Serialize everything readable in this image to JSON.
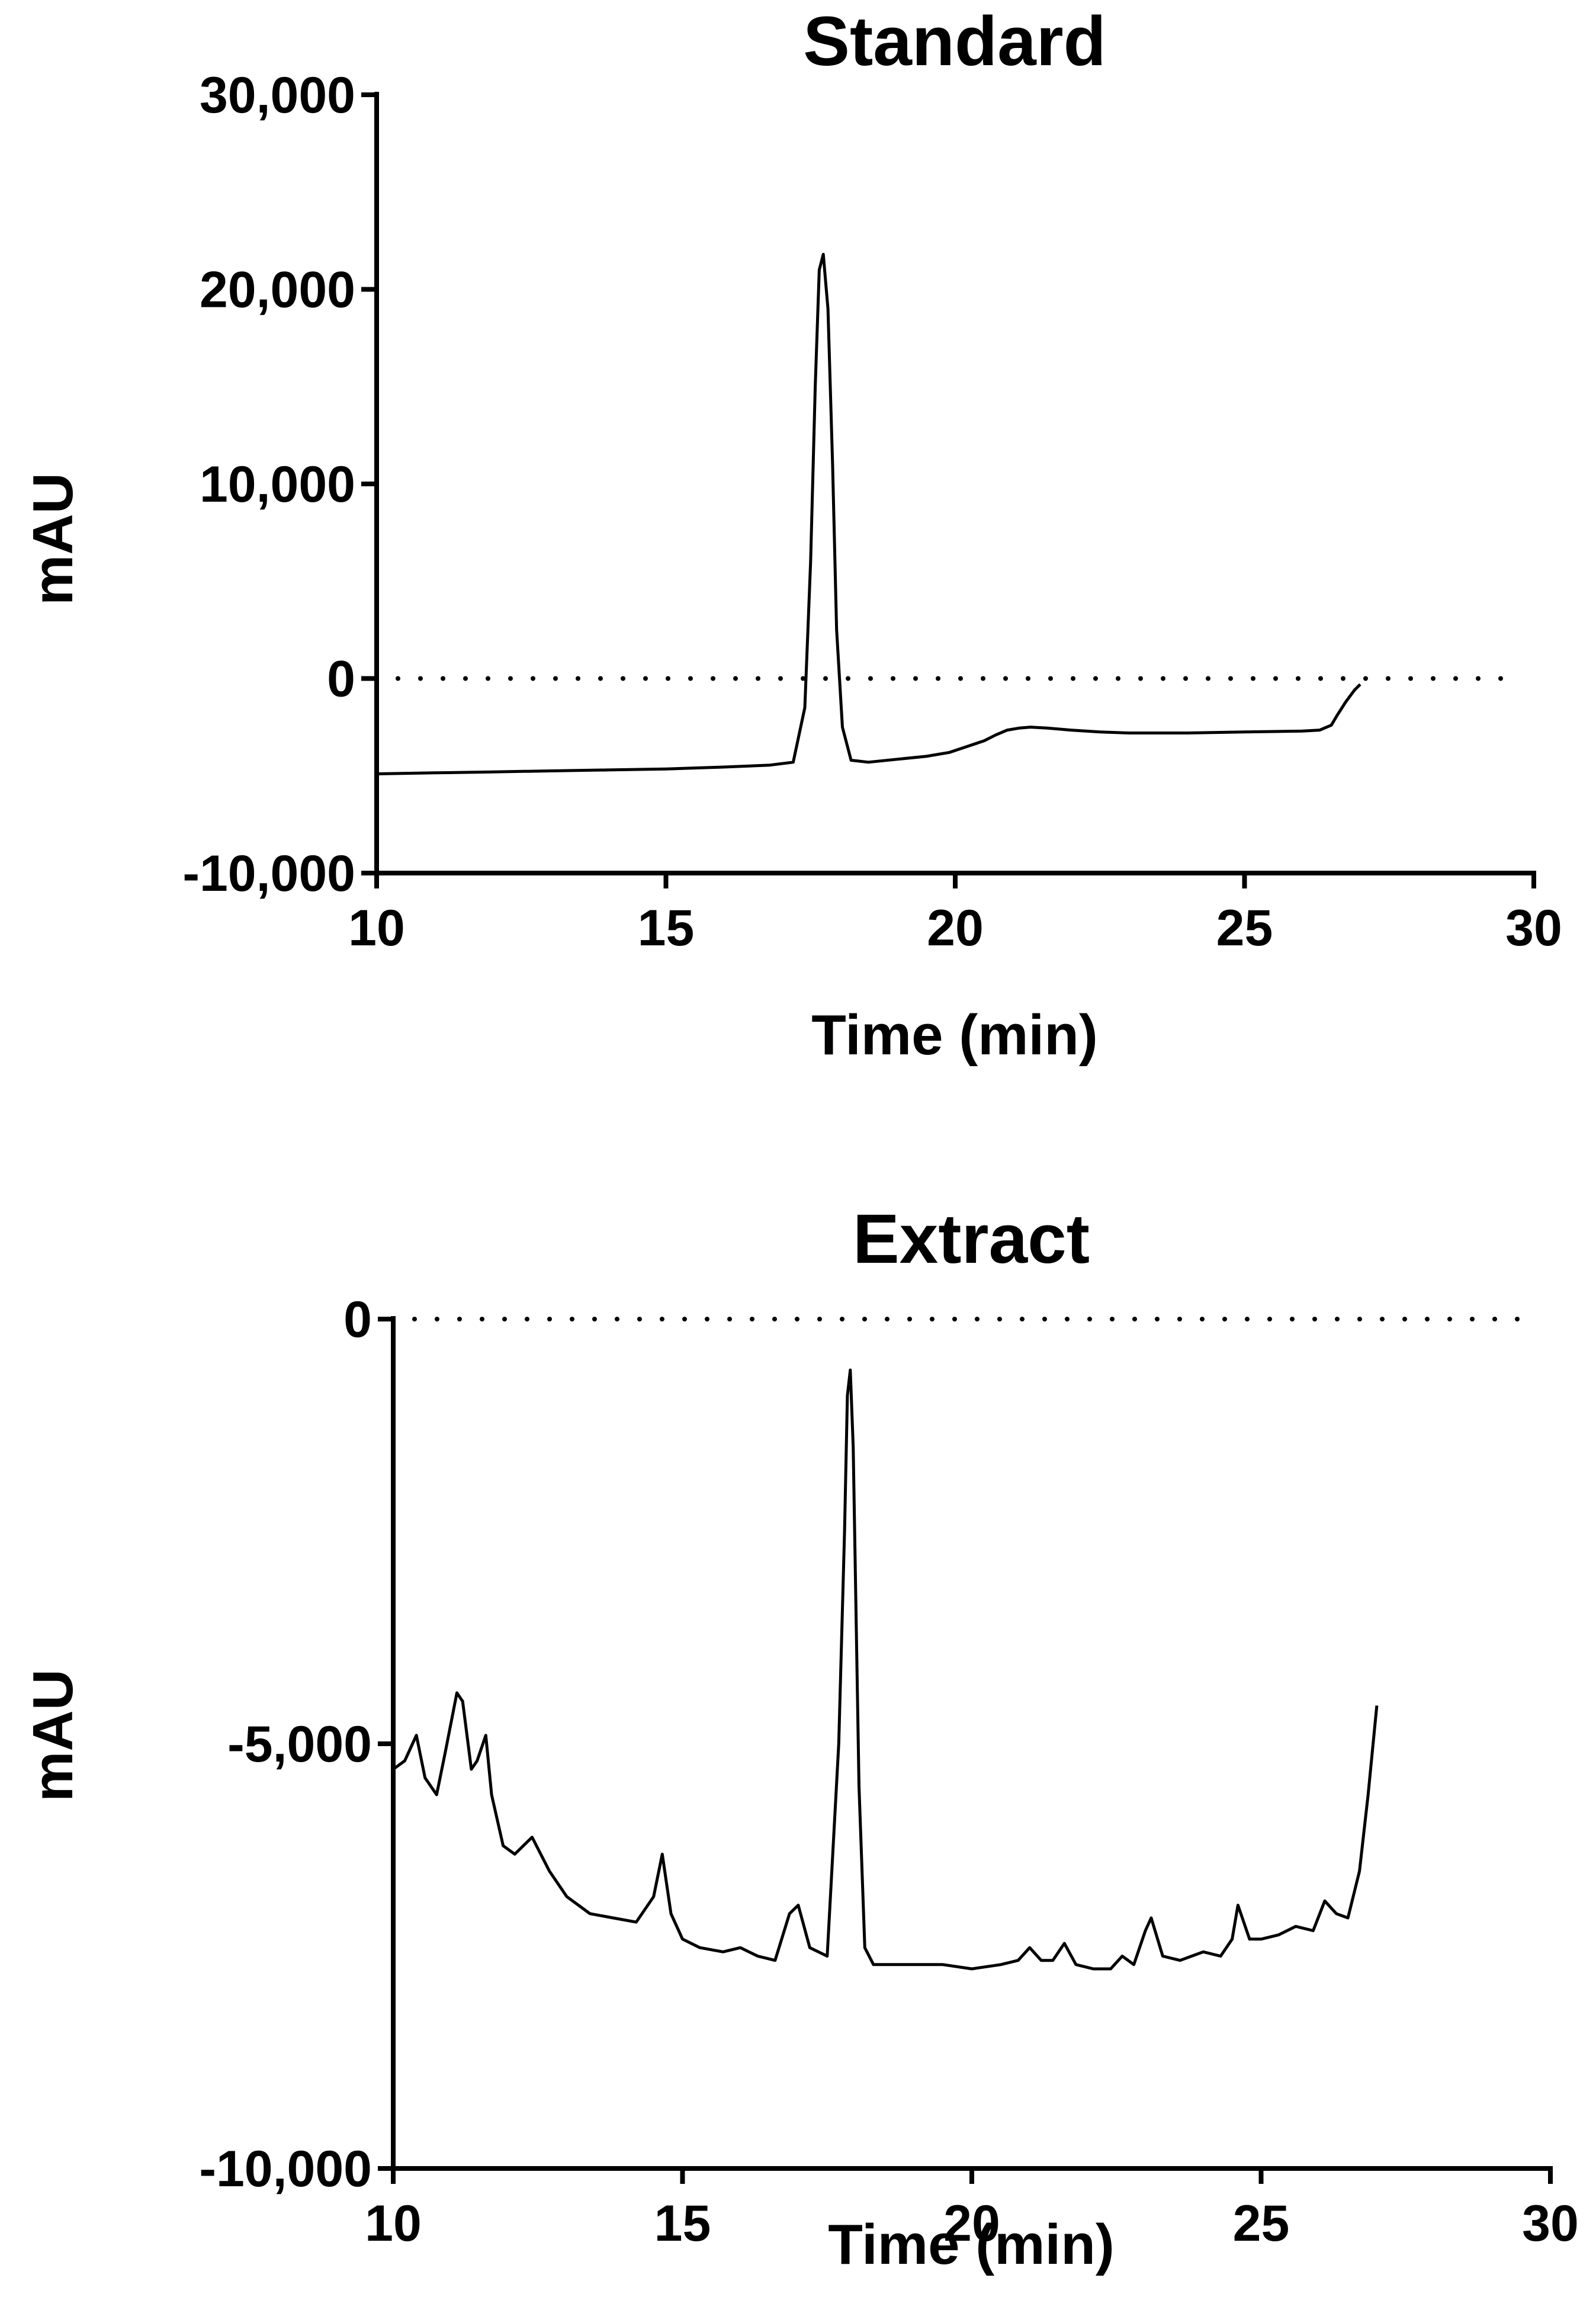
{
  "chart_data": [
    {
      "type": "line",
      "title": "Standard",
      "xlabel": "Time (min)",
      "ylabel": "mAU",
      "xlim": [
        10,
        30
      ],
      "ylim": [
        -10000,
        30000
      ],
      "xticks": [
        10,
        15,
        20,
        25,
        30
      ],
      "xtick_labels": [
        "10",
        "15",
        "20",
        "25",
        "30"
      ],
      "yticks": [
        -10000,
        0,
        10000,
        20000,
        30000
      ],
      "ytick_labels": [
        "-10,000",
        "0",
        "10,000",
        "20,000",
        "30,000"
      ],
      "reference_line": {
        "y": 0,
        "style": "dotted"
      },
      "grid": false,
      "legend": "none",
      "series": [
        {
          "x": [
            10,
            11,
            12,
            13,
            14,
            15,
            16,
            16.8,
            17.2,
            17.4,
            17.5,
            17.58,
            17.65,
            17.72,
            17.8,
            17.88,
            17.95,
            18.05,
            18.2,
            18.5,
            19,
            19.5,
            19.9,
            20.2,
            20.5,
            20.7,
            20.9,
            21.1,
            21.3,
            21.6,
            22,
            22.5,
            23,
            24,
            25,
            26,
            26.3,
            26.5,
            26.6,
            26.75,
            26.9,
            27
          ],
          "y": [
            -4900,
            -4850,
            -4800,
            -4750,
            -4700,
            -4650,
            -4550,
            -4450,
            -4300,
            -1500,
            6000,
            15000,
            21000,
            21800,
            19000,
            11000,
            2500,
            -2500,
            -4200,
            -4300,
            -4150,
            -4000,
            -3800,
            -3500,
            -3200,
            -2900,
            -2650,
            -2550,
            -2500,
            -2550,
            -2650,
            -2750,
            -2800,
            -2800,
            -2750,
            -2700,
            -2650,
            -2400,
            -1900,
            -1200,
            -600,
            -300
          ]
        }
      ]
    },
    {
      "type": "line",
      "title": "Extract",
      "xlabel": "Time (min)",
      "ylabel": "mAU",
      "xlim": [
        10,
        30
      ],
      "ylim": [
        -10000,
        0
      ],
      "xticks": [
        10,
        15,
        20,
        25,
        30
      ],
      "xtick_labels": [
        "10",
        "15",
        "20",
        "25",
        "30"
      ],
      "yticks": [
        -10000,
        -5000,
        0
      ],
      "ytick_labels": [
        "-10,000",
        "-5,000",
        "0"
      ],
      "reference_line": {
        "y": 0,
        "style": "dotted"
      },
      "grid": false,
      "legend": "none",
      "series": [
        {
          "x": [
            10,
            10.2,
            10.4,
            10.55,
            10.75,
            10.9,
            11.1,
            11.2,
            11.35,
            11.45,
            11.6,
            11.7,
            11.9,
            12.1,
            12.4,
            12.7,
            13,
            13.4,
            13.8,
            14.2,
            14.5,
            14.65,
            14.8,
            15,
            15.3,
            15.7,
            16,
            16.3,
            16.6,
            16.85,
            17,
            17.2,
            17.5,
            17.7,
            17.8,
            17.85,
            17.9,
            17.95,
            18.05,
            18.15,
            18.3,
            18.5,
            19,
            19.5,
            20,
            20.5,
            20.8,
            21,
            21.2,
            21.4,
            21.6,
            21.8,
            22.1,
            22.4,
            22.6,
            22.8,
            23,
            23.1,
            23.3,
            23.6,
            24,
            24.3,
            24.5,
            24.6,
            24.8,
            25,
            25.3,
            25.6,
            25.9,
            26.1,
            26.3,
            26.5,
            26.7,
            26.85,
            27
          ],
          "y": [
            -5300,
            -5200,
            -4900,
            -5400,
            -5600,
            -5100,
            -4400,
            -4500,
            -5300,
            -5200,
            -4900,
            -5600,
            -6200,
            -6300,
            -6100,
            -6500,
            -6800,
            -7000,
            -7050,
            -7100,
            -6800,
            -6300,
            -7000,
            -7300,
            -7400,
            -7450,
            -7400,
            -7500,
            -7550,
            -7000,
            -6900,
            -7400,
            -7500,
            -5000,
            -2500,
            -900,
            -600,
            -1500,
            -5500,
            -7400,
            -7600,
            -7600,
            -7600,
            -7600,
            -7650,
            -7600,
            -7550,
            -7400,
            -7550,
            -7550,
            -7350,
            -7600,
            -7650,
            -7650,
            -7500,
            -7600,
            -7200,
            -7050,
            -7500,
            -7550,
            -7450,
            -7500,
            -7300,
            -6900,
            -7300,
            -7300,
            -7250,
            -7150,
            -7200,
            -6850,
            -7000,
            -7050,
            -6500,
            -5600,
            -4550
          ]
        }
      ]
    }
  ]
}
